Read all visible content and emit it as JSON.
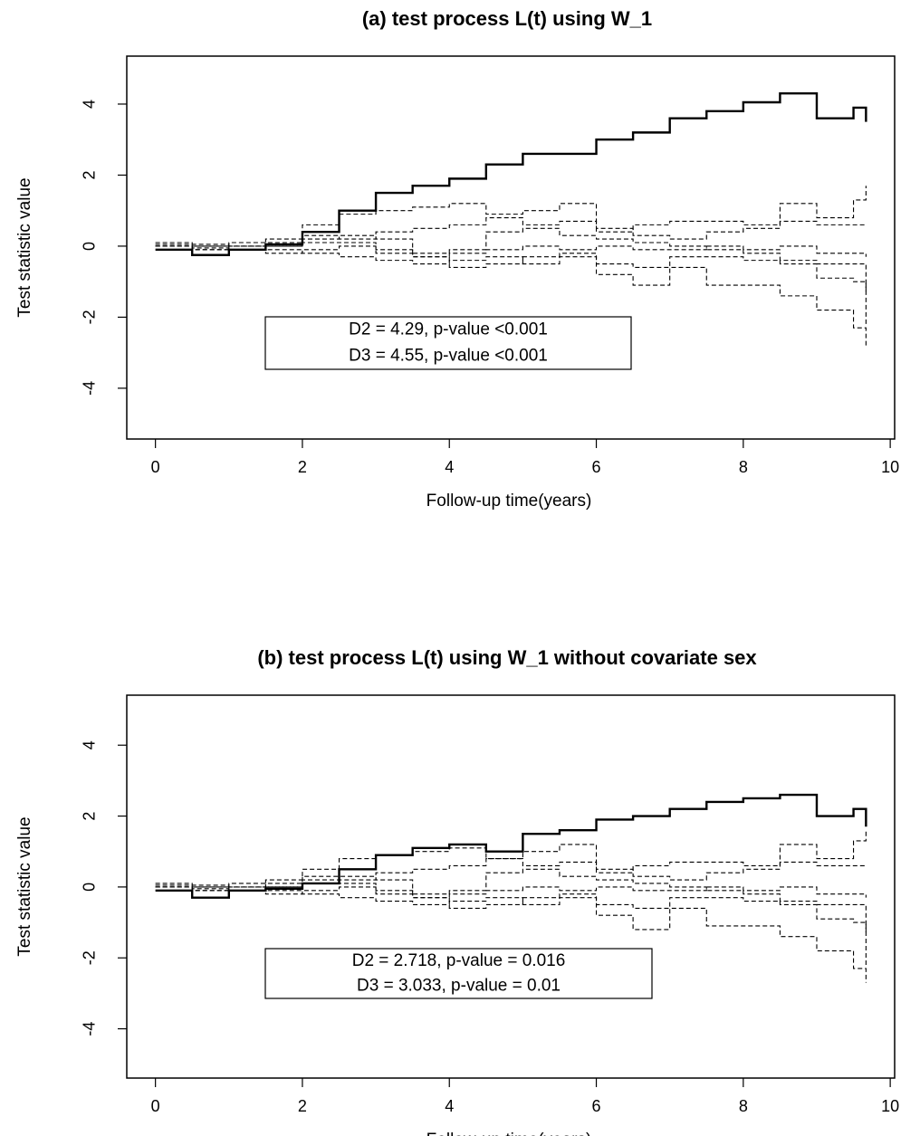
{
  "chart_data": [
    {
      "type": "line",
      "step": true,
      "title": "(a) test process L(t) using W_1",
      "x_label": "Follow-up time(years)",
      "y_label": "Test statistic value",
      "annotations": [
        "D2 = 4.29, p-value <0.001",
        "D3 = 4.55, p-value <0.001"
      ],
      "x": [
        0,
        0.5,
        1,
        1.5,
        2,
        2.5,
        3,
        3.5,
        4,
        4.5,
        5,
        5.5,
        6,
        6.5,
        7,
        7.5,
        8,
        8.5,
        9,
        9.5,
        9.67
      ],
      "xlim": [
        -0.39,
        10.06
      ],
      "xticks": [
        0,
        2,
        4,
        6,
        8,
        10
      ],
      "ylim": [
        -5.43,
        5.35
      ],
      "yticks": [
        -4,
        -2,
        0,
        2,
        4
      ],
      "series": [
        {
          "color": "#000000",
          "style": "solid",
          "values": [
            -0.1,
            -0.25,
            -0.1,
            0.05,
            0.4,
            1.0,
            1.5,
            1.7,
            1.9,
            2.3,
            2.6,
            2.6,
            3.0,
            3.2,
            3.6,
            3.8,
            4.05,
            4.3,
            3.6,
            3.9,
            3.5
          ]
        },
        {
          "color": "#000000",
          "style": "dashed",
          "values": [
            0.05,
            0.05,
            0,
            0.2,
            0.6,
            0.9,
            1.0,
            1.1,
            1.2,
            0.9,
            1.0,
            1.2,
            0.5,
            0.3,
            0.2,
            0.4,
            0.5,
            1.2,
            0.8,
            1.3,
            1.7
          ]
        },
        {
          "color": "#000000",
          "style": "dashed",
          "values": [
            0,
            -0.1,
            0.1,
            0,
            0.3,
            0.2,
            0.4,
            0.5,
            0.6,
            0.8,
            0.6,
            0.7,
            0.4,
            0.6,
            0.7,
            0.7,
            0.6,
            0.7,
            0.6,
            0.6,
            0.6
          ]
        },
        {
          "color": "#000000",
          "style": "dashed",
          "values": [
            0,
            -0.05,
            -0.1,
            -0.2,
            -0.1,
            0,
            -0.2,
            -0.3,
            -0.2,
            -0.1,
            0,
            -0.1,
            0,
            -0.1,
            -0.1,
            0,
            -0.1,
            0,
            -0.2,
            -0.2,
            -0.3
          ]
        },
        {
          "color": "#000000",
          "style": "dashed",
          "values": [
            0,
            0,
            -0.1,
            -0.1,
            -0.2,
            -0.3,
            -0.4,
            -0.5,
            -0.4,
            -0.3,
            -0.5,
            -0.3,
            -0.8,
            -1.1,
            -0.6,
            -1.1,
            -1.1,
            -1.4,
            -1.8,
            -2.3,
            -2.8
          ]
        },
        {
          "color": "#000000",
          "style": "dashed",
          "values": [
            0.1,
            0,
            -0.1,
            0,
            0.1,
            0.1,
            -0.1,
            -0.2,
            -0.1,
            0.4,
            0.5,
            0.3,
            0.2,
            0.1,
            0,
            -0.1,
            -0.2,
            -0.4,
            -0.5,
            -0.5,
            -1.3
          ]
        },
        {
          "color": "#000000",
          "style": "dashed",
          "values": [
            0,
            -0.1,
            0,
            0.1,
            0.2,
            0.3,
            0.2,
            -0.3,
            -0.6,
            -0.5,
            -0.3,
            -0.2,
            -0.5,
            -0.6,
            -0.3,
            -0.3,
            -0.4,
            -0.5,
            -0.9,
            -1.0,
            -2.2
          ]
        }
      ]
    },
    {
      "type": "line",
      "step": true,
      "title": "(b) test process L(t) using W_1 without covariate sex",
      "x_label": "Follow-up time(years)",
      "y_label": "Test statistic value",
      "annotations": [
        "D2 = 2.718, p-value = 0.016",
        "D3 = 3.033, p-value = 0.01"
      ],
      "x": [
        0,
        0.5,
        1,
        1.5,
        2,
        2.5,
        3,
        3.5,
        4,
        4.5,
        5,
        5.5,
        6,
        6.5,
        7,
        7.5,
        8,
        8.5,
        9,
        9.5,
        9.67
      ],
      "xlim": [
        -0.39,
        10.06
      ],
      "xticks": [
        0,
        2,
        4,
        6,
        8,
        10
      ],
      "ylim": [
        -5.39,
        5.41
      ],
      "yticks": [
        -4,
        -2,
        0,
        2,
        4
      ],
      "series": [
        {
          "color": "#000000",
          "style": "solid",
          "values": [
            -0.1,
            -0.3,
            -0.1,
            -0.05,
            0.1,
            0.5,
            0.9,
            1.1,
            1.2,
            1.0,
            1.5,
            1.6,
            1.9,
            2.0,
            2.2,
            2.4,
            2.5,
            2.6,
            2.0,
            2.2,
            1.7
          ]
        },
        {
          "color": "#000000",
          "style": "dashed",
          "values": [
            0.05,
            0.05,
            0,
            0.2,
            0.5,
            0.8,
            0.9,
            1.0,
            1.1,
            0.8,
            1.0,
            1.2,
            0.5,
            0.3,
            0.2,
            0.4,
            0.5,
            1.2,
            0.8,
            1.3,
            1.6
          ]
        },
        {
          "color": "#000000",
          "style": "dashed",
          "values": [
            0,
            -0.1,
            0.1,
            0,
            0.3,
            0.2,
            0.4,
            0.5,
            0.6,
            0.8,
            0.6,
            0.7,
            0.4,
            0.6,
            0.7,
            0.7,
            0.6,
            0.7,
            0.6,
            0.6,
            0.6
          ]
        },
        {
          "color": "#000000",
          "style": "dashed",
          "values": [
            0,
            -0.05,
            -0.1,
            -0.2,
            -0.1,
            0,
            -0.2,
            -0.3,
            -0.2,
            -0.1,
            0,
            -0.1,
            0,
            -0.1,
            -0.1,
            0,
            -0.1,
            0,
            -0.2,
            -0.2,
            -0.3
          ]
        },
        {
          "color": "#000000",
          "style": "dashed",
          "values": [
            0,
            0,
            -0.1,
            -0.1,
            -0.2,
            -0.3,
            -0.4,
            -0.5,
            -0.4,
            -0.3,
            -0.5,
            -0.3,
            -0.8,
            -1.2,
            -0.6,
            -1.1,
            -1.1,
            -1.4,
            -1.8,
            -2.3,
            -2.7
          ]
        },
        {
          "color": "#000000",
          "style": "dashed",
          "values": [
            0.1,
            0,
            -0.1,
            0,
            0.1,
            0.1,
            -0.1,
            -0.2,
            -0.1,
            0.4,
            0.5,
            0.3,
            0.2,
            0.1,
            0,
            -0.1,
            -0.2,
            -0.4,
            -0.5,
            -0.5,
            -1.3
          ]
        },
        {
          "color": "#000000",
          "style": "dashed",
          "values": [
            0,
            -0.1,
            0,
            0.1,
            0.2,
            0.3,
            0.2,
            -0.3,
            -0.6,
            -0.5,
            -0.3,
            -0.2,
            -0.5,
            -0.6,
            -0.3,
            -0.3,
            -0.4,
            -0.5,
            -0.9,
            -1.0,
            -2.2
          ]
        }
      ]
    }
  ]
}
